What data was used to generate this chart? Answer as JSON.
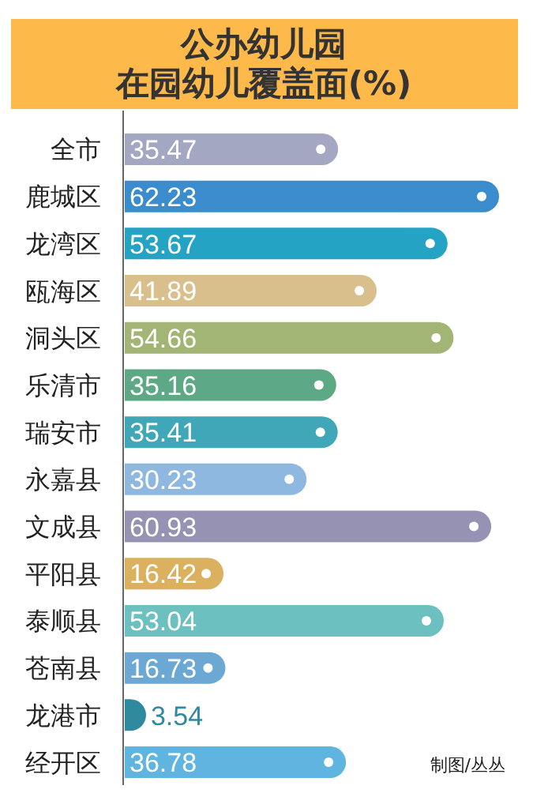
{
  "chart_data": {
    "type": "bar",
    "orientation": "horizontal",
    "title": "公办幼儿园在园幼儿覆盖面(%)",
    "categories": [
      "全市",
      "鹿城区",
      "龙湾区",
      "瓯海区",
      "洞头区",
      "乐清市",
      "瑞安市",
      "永嘉县",
      "文成县",
      "平阳县",
      "泰顺县",
      "苍南县",
      "龙港市",
      "经开区"
    ],
    "values": [
      35.47,
      62.23,
      53.67,
      41.89,
      54.66,
      35.16,
      35.41,
      30.23,
      60.93,
      16.42,
      53.04,
      16.73,
      3.54,
      36.78
    ],
    "colors": [
      "#a3a7c2",
      "#3a8ccc",
      "#25a3c4",
      "#d9bf8c",
      "#a3b575",
      "#5ea985",
      "#40a7b8",
      "#8fb8e0",
      "#9592b4",
      "#dbb160",
      "#6cc0bf",
      "#6ba8d4",
      "#2f8aa0",
      "#5fb4e0"
    ],
    "data_labels": true,
    "annotations": [
      "制图/丛丛"
    ]
  }
}
